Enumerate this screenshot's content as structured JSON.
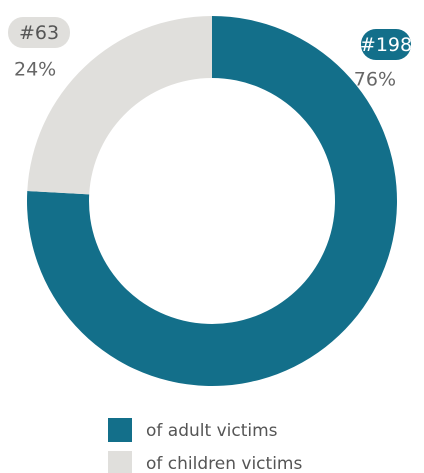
{
  "chart_data": {
    "type": "donut",
    "categories": [
      "of adult victims",
      "of children victims"
    ],
    "values": [
      198,
      63
    ],
    "value_labels": [
      "#198",
      "#63"
    ],
    "percentages": [
      76,
      24
    ],
    "percent_labels": [
      "76%",
      "24%"
    ],
    "colors": [
      "#136f8a",
      "#e0dfdc"
    ],
    "legend": "bottom"
  }
}
